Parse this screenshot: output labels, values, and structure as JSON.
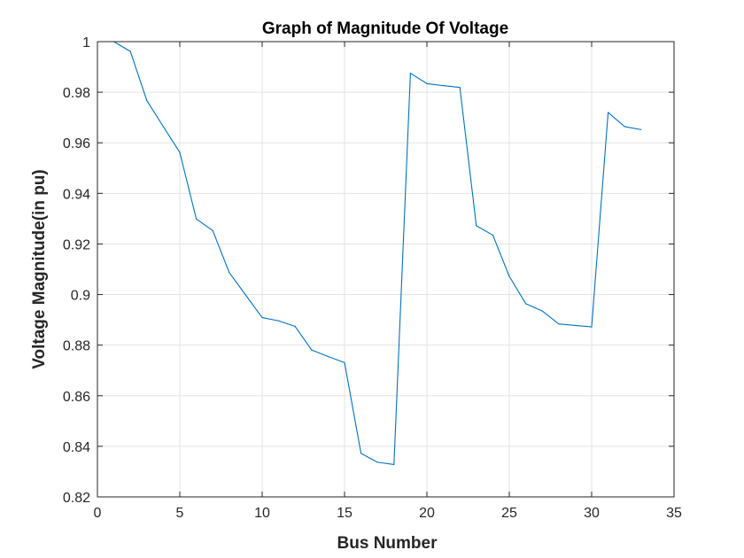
{
  "chart_data": {
    "type": "line",
    "title": "Graph of Magnitude Of Voltage",
    "xlabel": "Bus Number",
    "ylabel": "Voltage Magnitude(in pu)",
    "xlim": [
      0,
      35
    ],
    "ylim": [
      0.82,
      1.0
    ],
    "xticks": [
      0,
      5,
      10,
      15,
      20,
      25,
      30,
      35
    ],
    "yticks": [
      0.82,
      0.84,
      0.86,
      0.88,
      0.9,
      0.92,
      0.94,
      0.96,
      0.98,
      1
    ],
    "xtick_labels": [
      "0",
      "5",
      "10",
      "15",
      "20",
      "25",
      "30",
      "35"
    ],
    "ytick_labels": [
      "0.82",
      "0.84",
      "0.86",
      "0.88",
      "0.9",
      "0.92",
      "0.94",
      "0.96",
      "0.98",
      "1"
    ],
    "grid": true,
    "line_color": "#0072BD",
    "series": [
      {
        "x": [
          1,
          2,
          3,
          4,
          5,
          6,
          7,
          8,
          9,
          10,
          11,
          12,
          13,
          14,
          15,
          16,
          17,
          18,
          19,
          20,
          21,
          22,
          23,
          24,
          25,
          26,
          27,
          28,
          29,
          30,
          31,
          32,
          33
        ],
        "values": [
          1.0,
          0.9961,
          0.9767,
          0.9664,
          0.9562,
          0.9299,
          0.9253,
          0.9087,
          0.8998,
          0.8909,
          0.8896,
          0.8874,
          0.8781,
          0.8755,
          0.8731,
          0.8372,
          0.8337,
          0.8328,
          0.9875,
          0.9834,
          0.9826,
          0.9819,
          0.9272,
          0.9235,
          0.9072,
          0.8964,
          0.8935,
          0.8884,
          0.8878,
          0.8872,
          0.972,
          0.9664,
          0.9652
        ]
      }
    ]
  }
}
